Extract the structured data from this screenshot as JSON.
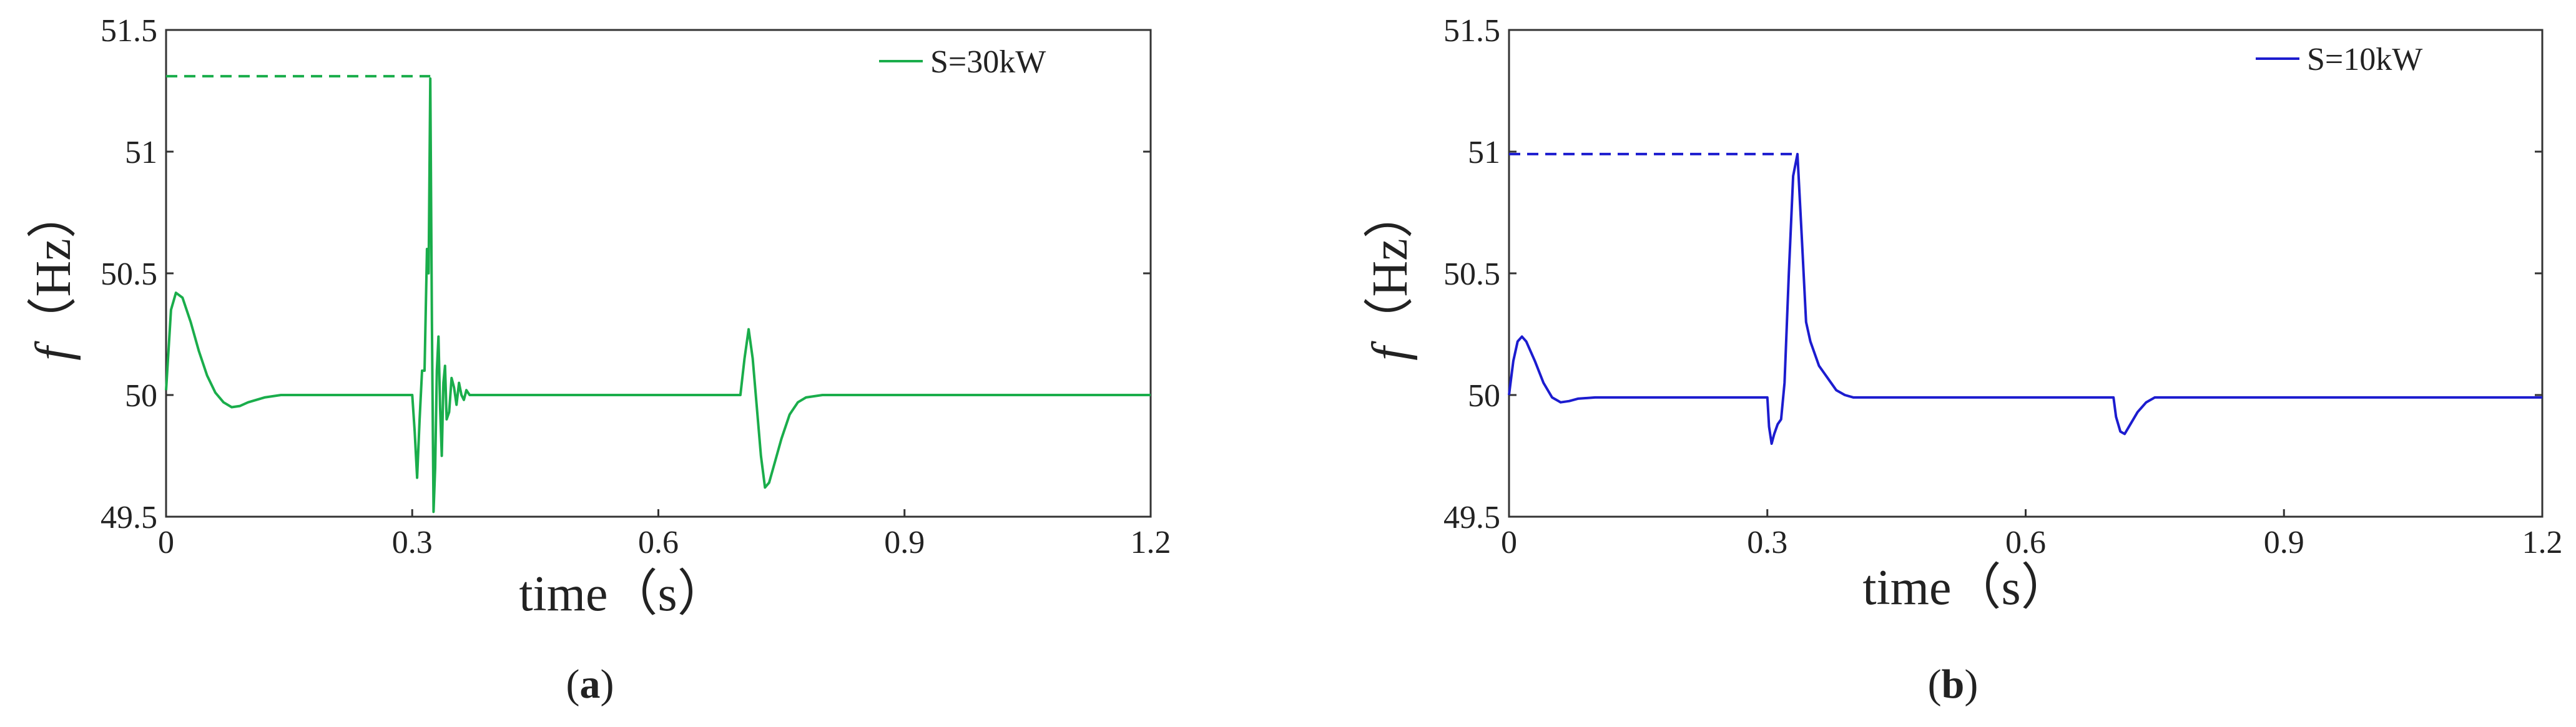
{
  "chart_data": [
    {
      "type": "line",
      "caption_open": "(",
      "caption_letter": "a",
      "caption_close": ")",
      "title": "",
      "xlabel": "time（s）",
      "ylabel_symbol": "f",
      "ylabel_unit": "（Hz）",
      "xlim": [
        0,
        1.2
      ],
      "ylim": [
        49.5,
        51.5
      ],
      "xticks": [
        0,
        0.3,
        0.6,
        0.9,
        1.2
      ],
      "xtick_labels": [
        "0",
        "0.3",
        "0.6",
        "0.9",
        "1.2"
      ],
      "yticks": [
        49.5,
        50,
        50.5,
        51,
        51.5
      ],
      "ytick_labels": [
        "49.5",
        "50",
        "50.5",
        "51",
        "51.5"
      ],
      "grid": false,
      "legend_position": "top-right",
      "color": "#1aad4b",
      "series": [
        {
          "name": "S=30kW",
          "x": [
            0,
            0.006,
            0.012,
            0.02,
            0.03,
            0.04,
            0.05,
            0.06,
            0.07,
            0.08,
            0.09,
            0.1,
            0.12,
            0.14,
            0.16,
            0.2,
            0.25,
            0.3,
            0.303,
            0.306,
            0.309,
            0.312,
            0.315,
            0.318,
            0.32,
            0.322,
            0.324,
            0.326,
            0.328,
            0.33,
            0.332,
            0.334,
            0.336,
            0.338,
            0.34,
            0.342,
            0.345,
            0.348,
            0.351,
            0.354,
            0.357,
            0.36,
            0.363,
            0.366,
            0.37,
            0.375,
            0.38,
            0.39,
            0.4,
            0.5,
            0.6,
            0.7,
            0.705,
            0.71,
            0.715,
            0.72,
            0.725,
            0.73,
            0.735,
            0.74,
            0.75,
            0.76,
            0.77,
            0.78,
            0.8,
            0.85,
            0.9,
            1.0,
            1.1,
            1.2
          ],
          "values": [
            50.02,
            50.35,
            50.42,
            50.4,
            50.3,
            50.18,
            50.08,
            50.01,
            49.97,
            49.95,
            49.955,
            49.97,
            49.99,
            50.0,
            50.0,
            50.0,
            50.0,
            50.0,
            49.85,
            49.66,
            49.9,
            50.1,
            50.1,
            50.6,
            50.5,
            51.3,
            50.3,
            49.52,
            49.7,
            50.1,
            50.24,
            49.95,
            49.75,
            50.05,
            50.12,
            49.9,
            49.93,
            50.07,
            50.03,
            49.96,
            50.05,
            50.0,
            49.98,
            50.02,
            50.0,
            50.0,
            50.0,
            50.0,
            50.0,
            50.0,
            50.0,
            50.0,
            50.15,
            50.27,
            50.15,
            49.95,
            49.75,
            49.62,
            49.64,
            49.7,
            49.82,
            49.92,
            49.97,
            49.99,
            50.0,
            50.0,
            50.0,
            50.0,
            50.0,
            50.0
          ]
        }
      ],
      "peak_reference": {
        "x_from": 0,
        "x_to": 0.322,
        "value": 51.31
      }
    },
    {
      "type": "line",
      "caption_open": "(",
      "caption_letter": "b",
      "caption_close": ")",
      "title": "",
      "xlabel": "time（s）",
      "ylabel_symbol": "f",
      "ylabel_unit": "（Hz）",
      "xlim": [
        0,
        1.2
      ],
      "ylim": [
        49.5,
        51.5
      ],
      "xticks": [
        0,
        0.3,
        0.6,
        0.9,
        1.2
      ],
      "xtick_labels": [
        "0",
        "0.3",
        "0.6",
        "0.9",
        "1.2"
      ],
      "yticks": [
        49.5,
        50,
        50.5,
        51,
        51.5
      ],
      "ytick_labels": [
        "49.5",
        "50",
        "50.5",
        "51",
        "51.5"
      ],
      "grid": false,
      "legend_position": "top-right",
      "color": "#1c1ccf",
      "series": [
        {
          "name": "S=10kW",
          "x": [
            0,
            0.005,
            0.01,
            0.015,
            0.02,
            0.03,
            0.04,
            0.05,
            0.06,
            0.07,
            0.08,
            0.1,
            0.15,
            0.2,
            0.25,
            0.29,
            0.3,
            0.302,
            0.305,
            0.308,
            0.312,
            0.316,
            0.32,
            0.325,
            0.33,
            0.335,
            0.34,
            0.345,
            0.35,
            0.36,
            0.37,
            0.38,
            0.39,
            0.4,
            0.45,
            0.5,
            0.6,
            0.7,
            0.702,
            0.705,
            0.71,
            0.715,
            0.72,
            0.73,
            0.74,
            0.75,
            0.76,
            0.8,
            0.9,
            1.0,
            1.1,
            1.2
          ],
          "values": [
            50.0,
            50.14,
            50.22,
            50.24,
            50.22,
            50.14,
            50.05,
            49.99,
            49.97,
            49.975,
            49.985,
            49.99,
            49.99,
            49.99,
            49.99,
            49.99,
            49.99,
            49.87,
            49.8,
            49.84,
            49.88,
            49.9,
            50.05,
            50.5,
            50.9,
            50.99,
            50.65,
            50.3,
            50.22,
            50.12,
            50.07,
            50.02,
            50.0,
            49.99,
            49.99,
            49.99,
            49.99,
            49.99,
            49.99,
            49.91,
            49.85,
            49.84,
            49.87,
            49.93,
            49.97,
            49.99,
            49.99,
            49.99,
            49.99,
            49.99,
            49.99,
            49.99
          ]
        }
      ],
      "peak_reference": {
        "x_from": 0,
        "x_to": 0.335,
        "value": 50.99
      }
    }
  ]
}
